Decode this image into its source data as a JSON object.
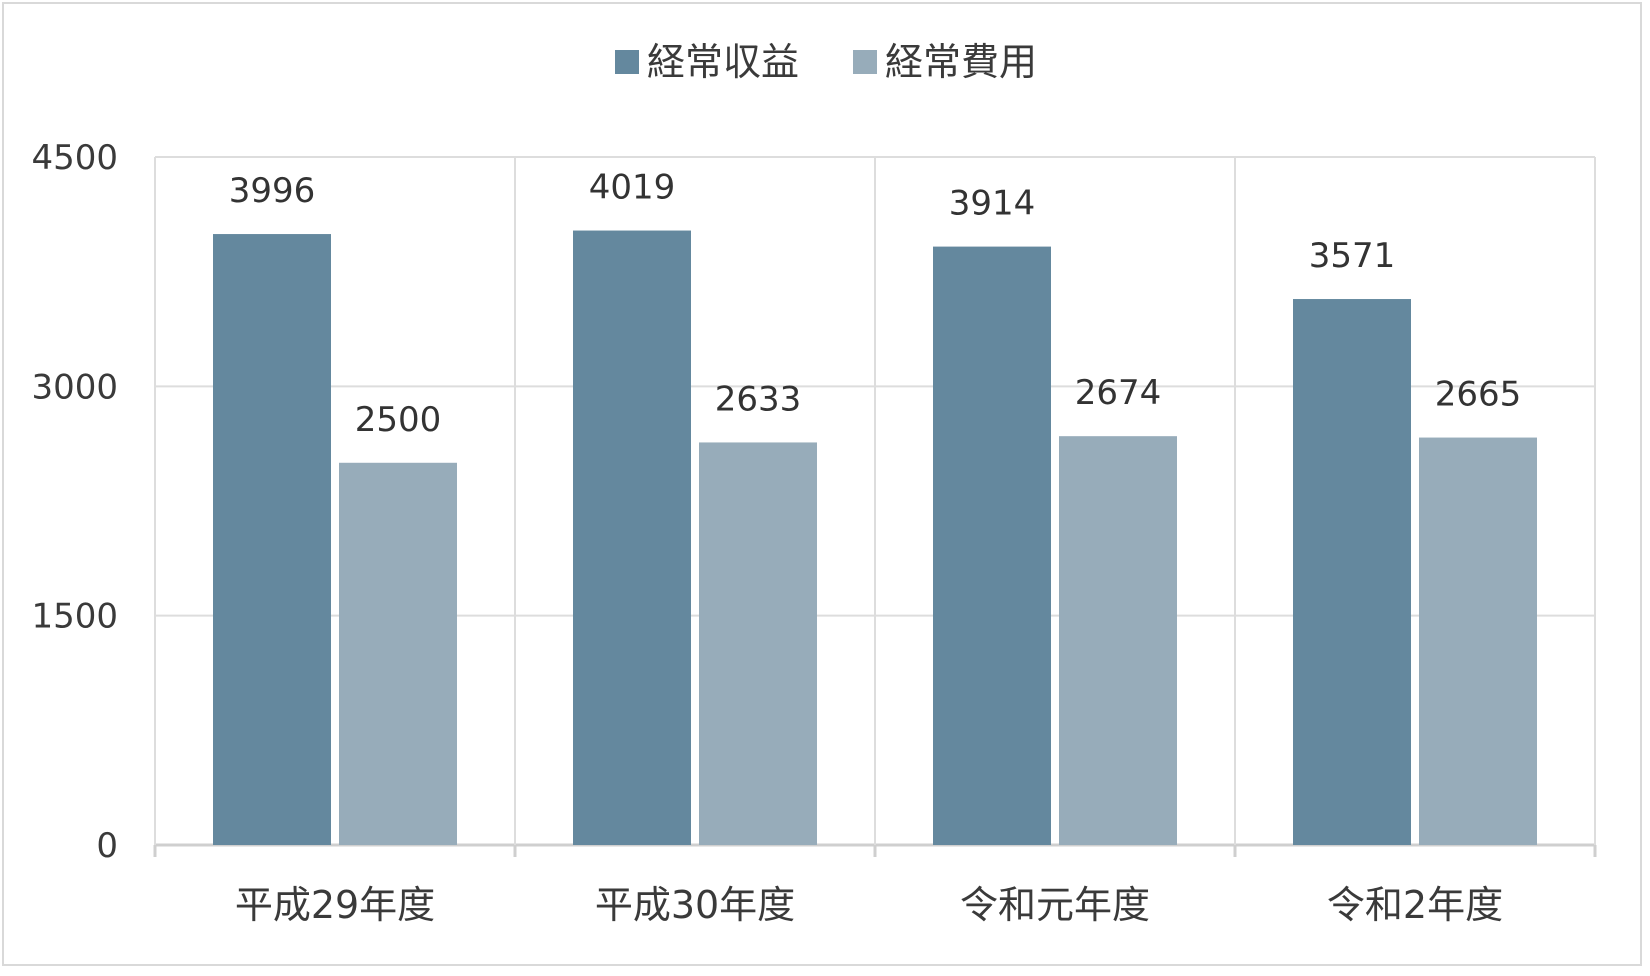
{
  "chart_data": {
    "type": "bar",
    "categories": [
      "平成29年度",
      "平成30年度",
      "令和元年度",
      "令和2年度"
    ],
    "series": [
      {
        "name": "経常収益",
        "values": [
          3996,
          4019,
          3914,
          3571
        ],
        "color": "#64889e"
      },
      {
        "name": "経常費用",
        "values": [
          2500,
          2633,
          2674,
          2665
        ],
        "color": "#97acba"
      }
    ],
    "ylim": [
      0,
      4500
    ],
    "yticks": [
      0,
      1500,
      3000,
      4500
    ],
    "grid": true,
    "legend_position": "top-center",
    "title": "",
    "xlabel": "",
    "ylabel": ""
  }
}
